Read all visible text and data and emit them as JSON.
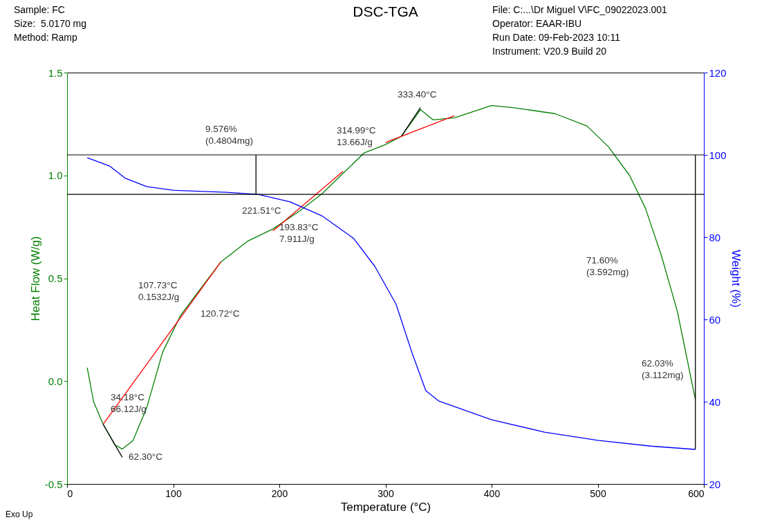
{
  "chart_data": {
    "type": "line",
    "title": "DSC-TGA",
    "xlabel": "Temperature (°C)",
    "ylabel": "Heat Flow (W/g)",
    "y2label": "Weight (%)",
    "xlim": [
      0,
      600
    ],
    "xticks": [
      0,
      100,
      200,
      300,
      400,
      500,
      600
    ],
    "ylim": [
      -0.5,
      1.5
    ],
    "yticks": [
      {
        "value": -0.5,
        "label": "-0.5"
      },
      {
        "value": 0,
        "label": "0.0"
      },
      {
        "value": 0.5,
        "label": "0.5"
      },
      {
        "value": 1,
        "label": "1.0"
      },
      {
        "value": 1.5,
        "label": "1.5"
      }
    ],
    "y2lim": [
      20,
      120
    ],
    "y2ticks": [
      20,
      40,
      60,
      80,
      100,
      120
    ],
    "series": [
      {
        "color": "#008000",
        "x": [
          19,
          25,
          34,
          45,
          52,
          62,
          75,
          90,
          107,
          120,
          145,
          170,
          194,
          220,
          240,
          260,
          280,
          300,
          315,
          333,
          345,
          365,
          400,
          420,
          460,
          490,
          510,
          530,
          545,
          560,
          575,
          592
        ],
        "values": [
          0.065,
          -0.1,
          -0.21,
          -0.31,
          -0.33,
          -0.29,
          -0.13,
          0.14,
          0.32,
          0.41,
          0.58,
          0.68,
          0.74,
          0.83,
          0.91,
          1.01,
          1.11,
          1.15,
          1.19,
          1.32,
          1.27,
          1.28,
          1.34,
          1.33,
          1.3,
          1.24,
          1.14,
          1.0,
          0.84,
          0.61,
          0.34,
          -0.09
        ]
      },
      {
        "color": "#0000ff",
        "axis": "y2",
        "x": [
          19,
          40,
          55,
          75,
          100,
          150,
          180,
          210,
          240,
          270,
          290,
          310,
          325,
          338,
          350,
          400,
          450,
          500,
          550,
          592
        ],
        "values": [
          99.3,
          97.3,
          94.3,
          92.3,
          91.4,
          90.9,
          90.4,
          88.6,
          85.2,
          79.7,
          72.9,
          63.7,
          51.9,
          42.7,
          40.2,
          35.6,
          32.6,
          30.6,
          29.2,
          28.4
        ]
      },
      {
        "color": "#ff0000",
        "x": [
          34,
          145
        ],
        "values": [
          -0.21,
          0.58
        ]
      },
      {
        "color": "#ff0000",
        "x": [
          194,
          260
        ],
        "values": [
          0.73,
          1.02
        ]
      },
      {
        "color": "#ff0000",
        "x": [
          300,
          365
        ],
        "values": [
          1.16,
          1.29
        ]
      },
      {
        "color": "#000000",
        "x": [
          34,
          52
        ],
        "values": [
          -0.21,
          -0.37
        ]
      },
      {
        "color": "#000000",
        "x": [
          315,
          333
        ],
        "values": [
          1.19,
          1.33
        ]
      },
      {
        "color": "#000000",
        "axis": "y2",
        "x": [
          178,
          178
        ],
        "values": [
          100,
          90.4
        ]
      },
      {
        "color": "#000000",
        "axis": "y2",
        "x": [
          592,
          592
        ],
        "values": [
          100,
          28.4
        ]
      }
    ],
    "ref_lines": [
      {
        "axis": "y2",
        "value": 100,
        "color": "#000000"
      },
      {
        "axis": "y2",
        "value": 90.4,
        "color": "#000000"
      }
    ],
    "annotations": [
      "Sample: FC",
      "Size:  5.0170 mg",
      "Method: Ramp",
      "File: C:...\\Dr Miguel V\\FC_09022023.001",
      "Operator: EAAR-IBU",
      "Run Date: 09-Feb-2023 10:11",
      "Instrument: V20.9 Build 20",
      "Exo Up",
      "9.576%\n(0.4804mg)",
      "221.51°C",
      "193.83°C\n7.911J/g",
      "107.73°C\n0.1532J/g",
      "120.72°C",
      "34.18°C\n66.12J/g",
      "62.30°C",
      "314.99°C\n13.66J/g",
      "333.40°C",
      "71.60%\n(3.592mg)",
      "62.03%\n(3.112mg)"
    ]
  }
}
